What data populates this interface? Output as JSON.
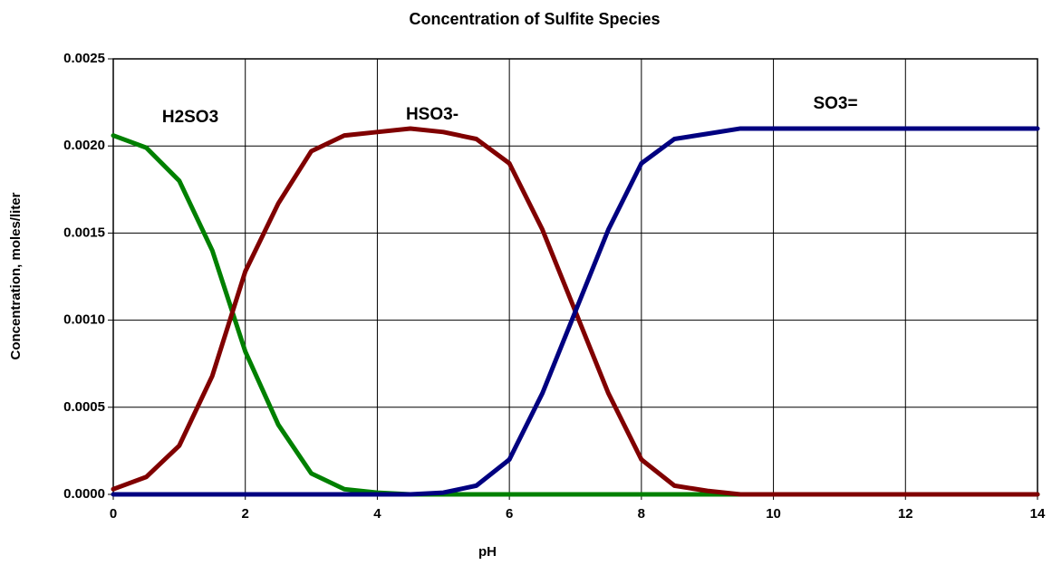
{
  "chart_data": {
    "type": "line",
    "title": "Concentration of Sulfite Species",
    "xlabel": "pH",
    "ylabel": "Concentration, moles/liter",
    "annotations": [
      "H2SO3",
      "HSO3-",
      "SO3="
    ],
    "x": [
      0,
      0.5,
      1,
      1.5,
      2,
      2.5,
      3,
      3.5,
      4,
      4.5,
      5,
      5.5,
      6,
      6.5,
      7,
      7.5,
      8,
      8.5,
      9,
      9.5,
      10,
      10.5,
      11,
      11.5,
      12,
      12.5,
      13,
      13.5,
      14
    ],
    "series": [
      {
        "name": "H2SO3",
        "color": "#008000",
        "values": [
          0.00206,
          0.00199,
          0.0018,
          0.0014,
          0.00082,
          0.0004,
          0.00012,
          3e-05,
          1e-05,
          0,
          0,
          0,
          0,
          0,
          0,
          0,
          0,
          0,
          0,
          0,
          0,
          0,
          0,
          0,
          0,
          0,
          0,
          0,
          0
        ]
      },
      {
        "name": "HSO3-",
        "color": "#800000",
        "values": [
          3e-05,
          0.0001,
          0.00028,
          0.00068,
          0.00128,
          0.00167,
          0.00197,
          0.00206,
          0.00208,
          0.0021,
          0.00208,
          0.00204,
          0.0019,
          0.00152,
          0.00105,
          0.00058,
          0.0002,
          5e-05,
          2e-05,
          0,
          0,
          0,
          0,
          0,
          0,
          0,
          0,
          0,
          0
        ]
      },
      {
        "name": "SO3=",
        "color": "#000080",
        "values": [
          0,
          0,
          0,
          0,
          0,
          0,
          0,
          0,
          0,
          0,
          1e-05,
          5e-05,
          0.0002,
          0.00058,
          0.00105,
          0.00152,
          0.0019,
          0.00204,
          0.00207,
          0.0021,
          0.0021,
          0.0021,
          0.0021,
          0.0021,
          0.0021,
          0.0021,
          0.0021,
          0.0021,
          0.0021
        ]
      }
    ],
    "xlim": [
      0,
      14
    ],
    "xticks": [
      0,
      2,
      4,
      6,
      8,
      10,
      12,
      14
    ],
    "ylim": [
      0,
      0.0025
    ],
    "yticks": [
      {
        "value": 0,
        "label": "0.0000"
      },
      {
        "value": 0.0005,
        "label": "0.0005"
      },
      {
        "value": 0.001,
        "label": "0.0010"
      },
      {
        "value": 0.0015,
        "label": "0.0015"
      },
      {
        "value": 0.002,
        "label": "0.0020"
      },
      {
        "value": 0.0025,
        "label": "0.0025"
      }
    ],
    "grid": true
  }
}
